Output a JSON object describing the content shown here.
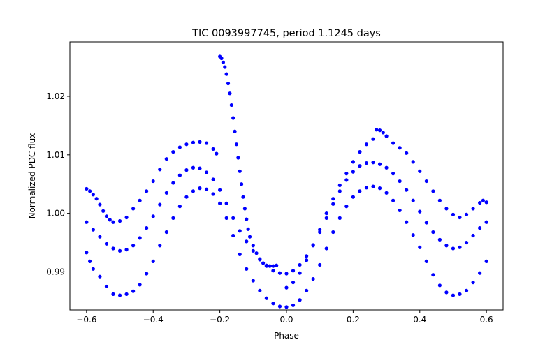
{
  "chart_data": {
    "type": "scatter",
    "title": "TIC 0093997745, period 1.1245 days",
    "xlabel": "Phase",
    "ylabel": "Normalized PDC flux",
    "xlim": [
      -0.65,
      0.65
    ],
    "ylim": [
      0.9835,
      1.0293
    ],
    "xticks": [
      -0.6,
      -0.4,
      -0.2,
      0.0,
      0.2,
      0.4,
      0.6
    ],
    "xtick_labels": [
      "−0.6",
      "−0.4",
      "−0.2",
      "0.0",
      "0.2",
      "0.4",
      "0.6"
    ],
    "yticks": [
      0.99,
      1.0,
      1.01,
      1.02
    ],
    "ytick_labels": [
      "0.99",
      "1.00",
      "1.01",
      "1.02"
    ],
    "grid": false,
    "marker_color": "#0000ff",
    "series": [
      {
        "points": [
          [
            -0.6,
            0.9985
          ],
          [
            -0.58,
            0.9972
          ],
          [
            -0.56,
            0.996
          ],
          [
            -0.54,
            0.9948
          ],
          [
            -0.52,
            0.994
          ],
          [
            -0.5,
            0.9936
          ],
          [
            -0.48,
            0.9938
          ],
          [
            -0.46,
            0.9945
          ],
          [
            -0.44,
            0.9958
          ],
          [
            -0.42,
            0.9975
          ],
          [
            -0.4,
            0.9995
          ],
          [
            -0.38,
            1.0015
          ],
          [
            -0.36,
            1.0035
          ],
          [
            -0.34,
            1.0052
          ],
          [
            -0.32,
            1.0065
          ],
          [
            -0.3,
            1.0074
          ],
          [
            -0.28,
            1.0078
          ],
          [
            -0.26,
            1.0077
          ],
          [
            -0.24,
            1.007
          ],
          [
            -0.22,
            1.0058
          ],
          [
            -0.2,
            1.004
          ],
          [
            -0.18,
            1.0017
          ],
          [
            -0.16,
            0.9992
          ],
          [
            -0.14,
            0.997
          ],
          [
            -0.12,
            0.9952
          ],
          [
            -0.1,
            0.9936
          ],
          [
            -0.08,
            0.9921
          ],
          [
            -0.06,
            0.991
          ],
          [
            -0.04,
            0.9902
          ],
          [
            -0.02,
            0.9898
          ],
          [
            0.0,
            0.9897
          ],
          [
            0.02,
            0.9902
          ],
          [
            0.04,
            0.9912
          ],
          [
            0.06,
            0.9927
          ],
          [
            0.08,
            0.9946
          ],
          [
            0.1,
            0.9968
          ],
          [
            0.12,
            0.9992
          ],
          [
            0.14,
            1.0016
          ],
          [
            0.16,
            1.0038
          ],
          [
            0.18,
            1.0057
          ],
          [
            0.2,
            1.0071
          ],
          [
            0.22,
            1.0081
          ],
          [
            0.24,
            1.0086
          ],
          [
            0.26,
            1.0087
          ],
          [
            0.28,
            1.0084
          ],
          [
            0.3,
            1.0078
          ],
          [
            0.32,
            1.0068
          ],
          [
            0.34,
            1.0055
          ],
          [
            0.36,
            1.004
          ],
          [
            0.38,
            1.0022
          ],
          [
            0.4,
            1.0003
          ],
          [
            0.42,
            0.9984
          ],
          [
            0.44,
            0.9968
          ],
          [
            0.46,
            0.9955
          ],
          [
            0.48,
            0.9945
          ],
          [
            0.5,
            0.994
          ],
          [
            0.52,
            0.9942
          ],
          [
            0.54,
            0.995
          ],
          [
            0.56,
            0.9962
          ],
          [
            0.58,
            0.9975
          ],
          [
            0.6,
            0.9985
          ]
        ]
      },
      {
        "points": [
          [
            -0.6,
            1.0042
          ],
          [
            -0.59,
            1.0038
          ],
          [
            -0.58,
            1.0032
          ],
          [
            -0.57,
            1.0025
          ],
          [
            -0.56,
            1.0015
          ],
          [
            -0.55,
            1.0004
          ],
          [
            -0.54,
            0.9995
          ],
          [
            -0.53,
            0.9989
          ],
          [
            -0.52,
            0.9985
          ],
          [
            -0.5,
            0.9987
          ],
          [
            -0.48,
            0.9993
          ],
          [
            -0.46,
            1.0008
          ],
          [
            -0.44,
            1.0022
          ],
          [
            -0.42,
            1.0038
          ],
          [
            -0.4,
            1.0055
          ],
          [
            -0.38,
            1.0075
          ],
          [
            -0.36,
            1.0093
          ],
          [
            -0.34,
            1.0105
          ],
          [
            -0.32,
            1.0113
          ],
          [
            -0.3,
            1.0118
          ],
          [
            -0.28,
            1.0121
          ],
          [
            -0.26,
            1.0122
          ],
          [
            -0.24,
            1.012
          ],
          [
            -0.22,
            1.011
          ],
          [
            -0.21,
            1.0102
          ],
          [
            -0.2,
            1.0268
          ],
          [
            -0.195,
            1.0265
          ],
          [
            -0.19,
            1.0258
          ],
          [
            -0.185,
            1.025
          ],
          [
            -0.18,
            1.0238
          ],
          [
            -0.175,
            1.0222
          ],
          [
            -0.17,
            1.0205
          ],
          [
            -0.165,
            1.0185
          ],
          [
            -0.16,
            1.0163
          ],
          [
            -0.155,
            1.014
          ],
          [
            -0.15,
            1.0118
          ],
          [
            -0.145,
            1.0095
          ],
          [
            -0.14,
            1.0072
          ],
          [
            -0.135,
            1.005
          ],
          [
            -0.13,
            1.0028
          ],
          [
            -0.125,
            1.0008
          ],
          [
            -0.12,
            0.999
          ],
          [
            -0.115,
            0.9973
          ],
          [
            -0.11,
            0.996
          ],
          [
            -0.1,
            0.9945
          ],
          [
            -0.09,
            0.9932
          ],
          [
            -0.08,
            0.9922
          ],
          [
            -0.07,
            0.9915
          ],
          [
            -0.06,
            0.9911
          ],
          [
            -0.05,
            0.991
          ],
          [
            -0.04,
            0.991
          ],
          [
            -0.03,
            0.9911
          ]
        ]
      },
      {
        "points": [
          [
            -0.6,
            0.9933
          ],
          [
            -0.59,
            0.9918
          ],
          [
            -0.58,
            0.9905
          ],
          [
            -0.56,
            0.9892
          ],
          [
            -0.54,
            0.9875
          ],
          [
            -0.52,
            0.9862
          ],
          [
            -0.5,
            0.986
          ],
          [
            -0.48,
            0.9862
          ],
          [
            -0.46,
            0.9867
          ],
          [
            -0.44,
            0.9878
          ],
          [
            -0.42,
            0.9897
          ],
          [
            -0.4,
            0.9918
          ],
          [
            -0.38,
            0.9945
          ],
          [
            -0.36,
            0.9968
          ],
          [
            -0.34,
            0.9992
          ],
          [
            -0.32,
            1.0012
          ],
          [
            -0.3,
            1.0028
          ],
          [
            -0.28,
            1.0038
          ],
          [
            -0.26,
            1.0043
          ],
          [
            -0.24,
            1.0041
          ],
          [
            -0.22,
            1.0033
          ],
          [
            -0.2,
            1.0017
          ],
          [
            -0.18,
            0.9992
          ],
          [
            -0.16,
            0.9962
          ],
          [
            -0.14,
            0.993
          ],
          [
            -0.12,
            0.9905
          ],
          [
            -0.1,
            0.9885
          ],
          [
            -0.08,
            0.9868
          ],
          [
            -0.06,
            0.9855
          ],
          [
            -0.04,
            0.9846
          ],
          [
            -0.02,
            0.9841
          ],
          [
            0.0,
            0.984
          ],
          [
            0.02,
            0.9843
          ],
          [
            0.04,
            0.9852
          ],
          [
            0.06,
            0.9868
          ],
          [
            0.08,
            0.9888
          ],
          [
            0.1,
            0.9912
          ],
          [
            0.12,
            0.994
          ],
          [
            0.14,
            0.9968
          ],
          [
            0.16,
            0.9992
          ],
          [
            0.18,
            1.0012
          ],
          [
            0.2,
            1.0028
          ],
          [
            0.22,
            1.0038
          ],
          [
            0.24,
            1.0044
          ],
          [
            0.26,
            1.0046
          ],
          [
            0.28,
            1.0043
          ],
          [
            0.3,
            1.0035
          ],
          [
            0.32,
            1.0022
          ],
          [
            0.34,
            1.0005
          ],
          [
            0.36,
            0.9985
          ],
          [
            0.38,
            0.9963
          ],
          [
            0.4,
            0.9942
          ],
          [
            0.42,
            0.9918
          ],
          [
            0.44,
            0.9895
          ],
          [
            0.46,
            0.9877
          ],
          [
            0.48,
            0.9865
          ],
          [
            0.5,
            0.986
          ],
          [
            0.52,
            0.9862
          ],
          [
            0.54,
            0.9868
          ],
          [
            0.56,
            0.9882
          ],
          [
            0.58,
            0.9898
          ],
          [
            0.6,
            0.9918
          ]
        ]
      },
      {
        "points": [
          [
            0.0,
            0.9873
          ],
          [
            0.02,
            0.9882
          ],
          [
            0.04,
            0.9898
          ],
          [
            0.06,
            0.992
          ],
          [
            0.08,
            0.9945
          ],
          [
            0.1,
            0.9972
          ],
          [
            0.12,
            1.0
          ],
          [
            0.14,
            1.0025
          ],
          [
            0.16,
            1.0048
          ],
          [
            0.18,
            1.0068
          ],
          [
            0.2,
            1.0088
          ],
          [
            0.22,
            1.0105
          ],
          [
            0.24,
            1.0118
          ],
          [
            0.26,
            1.0127
          ],
          [
            0.27,
            1.0143
          ],
          [
            0.28,
            1.0142
          ],
          [
            0.29,
            1.0138
          ],
          [
            0.3,
            1.0132
          ],
          [
            0.32,
            1.012
          ],
          [
            0.34,
            1.0112
          ],
          [
            0.36,
            1.0103
          ],
          [
            0.38,
            1.0088
          ],
          [
            0.4,
            1.0072
          ],
          [
            0.42,
            1.0055
          ],
          [
            0.44,
            1.0038
          ],
          [
            0.46,
            1.0022
          ],
          [
            0.48,
            1.0008
          ],
          [
            0.5,
            0.9998
          ],
          [
            0.52,
            0.9993
          ],
          [
            0.54,
            0.9998
          ],
          [
            0.56,
            1.0008
          ],
          [
            0.58,
            1.0018
          ],
          [
            0.59,
            1.0022
          ],
          [
            0.6,
            1.0019
          ]
        ]
      }
    ]
  }
}
